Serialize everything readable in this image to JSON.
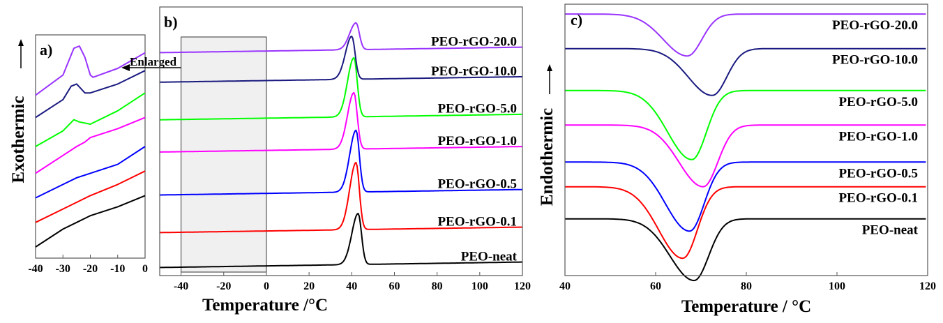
{
  "chart_data": [
    {
      "panel": "a",
      "type": "line",
      "panel_label": "a)",
      "ylabel": "Exothermic",
      "y_arrow": "up",
      "annotation": "Enlarged",
      "xlim": [
        -40,
        0
      ],
      "x_ticks": [
        -40,
        -30,
        -20,
        -10,
        0
      ],
      "x_tick_labels": [
        "-40",
        "-30",
        "-20",
        "-10",
        "0"
      ],
      "series": [
        {
          "name": "PEO-neat",
          "color": "#000000",
          "x": [
            -40,
            -30,
            -25,
            -20,
            -10,
            0
          ],
          "y": [
            0.05,
            0.13,
            0.16,
            0.19,
            0.23,
            0.28
          ]
        },
        {
          "name": "PEO-rGO-0.1",
          "color": "#ff0000",
          "x": [
            -40,
            -30,
            -25,
            -20,
            -10,
            0
          ],
          "y": [
            0.16,
            0.22,
            0.25,
            0.28,
            0.33,
            0.39
          ]
        },
        {
          "name": "PEO-rGO-0.5",
          "color": "#0000ff",
          "x": [
            -40,
            -30,
            -25,
            -20,
            -10,
            0
          ],
          "y": [
            0.27,
            0.33,
            0.36,
            0.38,
            0.42,
            0.5
          ]
        },
        {
          "name": "PEO-rGO-1.0",
          "color": "#ff00ff",
          "x": [
            -40,
            -30,
            -25,
            -22,
            -20,
            -10,
            0
          ],
          "y": [
            0.38,
            0.46,
            0.5,
            0.52,
            0.54,
            0.58,
            0.63
          ]
        },
        {
          "name": "PEO-rGO-5.0",
          "color": "#00ff00",
          "x": [
            -40,
            -30,
            -26,
            -24,
            -20,
            -10,
            0
          ],
          "y": [
            0.5,
            0.57,
            0.62,
            0.61,
            0.6,
            0.66,
            0.74
          ]
        },
        {
          "name": "PEO-rGO-10.0",
          "color": "#1a1a80",
          "x": [
            -40,
            -30,
            -27,
            -25,
            -22,
            -20,
            -10,
            0
          ],
          "y": [
            0.63,
            0.71,
            0.77,
            0.78,
            0.74,
            0.74,
            0.78,
            0.84
          ]
        },
        {
          "name": "PEO-rGO-20.0",
          "color": "#9933ff",
          "x": [
            -40,
            -30,
            -26,
            -24,
            -22,
            -20,
            -19,
            -10,
            0
          ],
          "y": [
            0.73,
            0.82,
            0.94,
            0.95,
            0.9,
            0.82,
            0.81,
            0.85,
            0.92
          ]
        }
      ]
    },
    {
      "panel": "b",
      "type": "line",
      "panel_label": "b)",
      "xlabel": "Temperature /°C",
      "xlim": [
        -50,
        120
      ],
      "x_ticks": [
        -40,
        -20,
        0,
        20,
        40,
        60,
        80,
        100,
        120
      ],
      "x_tick_labels": [
        "-40",
        "-20",
        "0",
        "20",
        "40",
        "60",
        "80",
        "100",
        "120"
      ],
      "highlight_region": [
        -40,
        0
      ],
      "series": [
        {
          "name": "PEO-neat",
          "label": "PEO-neat",
          "color": "#000000",
          "baseline": 0.03,
          "peak_x": 43,
          "peak_height": 0.19
        },
        {
          "name": "PEO-rGO-0.1",
          "label": "PEO-rGO-0.1",
          "color": "#ff0000",
          "baseline": 0.16,
          "peak_x": 42,
          "peak_height": 0.25
        },
        {
          "name": "PEO-rGO-0.5",
          "label": "PEO-rGO-0.5",
          "color": "#0000ff",
          "baseline": 0.3,
          "peak_x": 42,
          "peak_height": 0.23
        },
        {
          "name": "PEO-rGO-1.0",
          "label": "PEO-rGO-1.0",
          "color": "#ff00ff",
          "baseline": 0.46,
          "peak_x": 41,
          "peak_height": 0.21
        },
        {
          "name": "PEO-rGO-5.0",
          "label": "PEO-rGO-5.0",
          "color": "#00ff00",
          "baseline": 0.58,
          "peak_x": 41,
          "peak_height": 0.22
        },
        {
          "name": "PEO-rGO-10.0",
          "label": "PEO-rGO-10.0",
          "color": "#1a1a80",
          "baseline": 0.72,
          "peak_x": 40,
          "peak_height": 0.16
        },
        {
          "name": "PEO-rGO-20.0",
          "label": "PEO-rGO-20.0",
          "color": "#9933ff",
          "baseline": 0.83,
          "peak_x": 42,
          "peak_height": 0.1
        }
      ]
    },
    {
      "panel": "c",
      "type": "line",
      "panel_label": "c)",
      "xlabel": "Temperature / °C",
      "ylabel": "Endothermic",
      "y_arrow": "up",
      "xlim": [
        40,
        120
      ],
      "x_ticks": [
        40,
        60,
        80,
        100,
        120
      ],
      "x_tick_labels": [
        "40",
        "60",
        "80",
        "100",
        "120"
      ],
      "series": [
        {
          "name": "PEO-neat",
          "label": "PEO-neat",
          "color": "#000000",
          "baseline_left": 0.23,
          "baseline_right": 0.23,
          "dip_x": 68.5,
          "dip_depth": 0.25
        },
        {
          "name": "PEO-rGO-0.1",
          "label": "PEO-rGO-0.1",
          "color": "#ff0000",
          "baseline_left": 0.36,
          "baseline_right": 0.36,
          "dip_x": 66,
          "dip_depth": 0.29
        },
        {
          "name": "PEO-rGO-0.5",
          "label": "PEO-rGO-0.5",
          "color": "#0000ff",
          "baseline_left": 0.46,
          "baseline_right": 0.46,
          "dip_x": 67.5,
          "dip_depth": 0.28
        },
        {
          "name": "PEO-rGO-1.0",
          "label": "PEO-rGO-1.0",
          "color": "#ff00ff",
          "baseline_left": 0.61,
          "baseline_right": 0.61,
          "dip_x": 70.5,
          "dip_depth": 0.25
        },
        {
          "name": "PEO-rGO-5.0",
          "label": "PEO-rGO-5.0",
          "color": "#00ff00",
          "baseline_left": 0.75,
          "baseline_right": 0.75,
          "dip_x": 68,
          "dip_depth": 0.28
        },
        {
          "name": "PEO-rGO-10.0",
          "label": "PEO-rGO-10.0",
          "color": "#1a1a80",
          "baseline_left": 0.92,
          "baseline_right": 0.92,
          "dip_x": 72.5,
          "dip_depth": 0.19
        },
        {
          "name": "PEO-rGO-20.0",
          "label": "PEO-rGO-20.0",
          "color": "#9933ff",
          "baseline_left": 1.06,
          "baseline_right": 1.06,
          "dip_x": 67,
          "dip_depth": 0.17
        }
      ]
    }
  ]
}
